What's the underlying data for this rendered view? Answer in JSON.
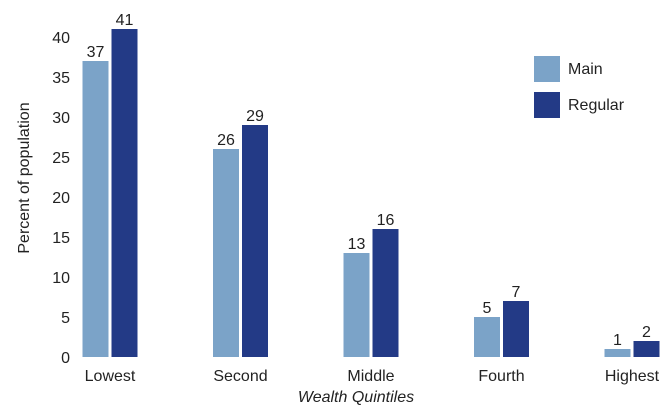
{
  "chart_data": {
    "type": "bar",
    "title": "",
    "xlabel": "Wealth Quintiles",
    "ylabel": "Percent of population",
    "categories": [
      "Lowest",
      "Second",
      "Middle",
      "Fourth",
      "Highest"
    ],
    "series": [
      {
        "name": "Main",
        "color": "#7ba3c8",
        "values": [
          37,
          26,
          13,
          5,
          1
        ]
      },
      {
        "name": "Regular",
        "color": "#233a86",
        "values": [
          41,
          29,
          16,
          7,
          2
        ]
      }
    ],
    "ylim": [
      0,
      41
    ],
    "yticks": [
      0,
      5,
      10,
      15,
      20,
      25,
      30,
      35,
      40
    ],
    "grid": false,
    "legend": "top-right",
    "data_labels": true
  }
}
